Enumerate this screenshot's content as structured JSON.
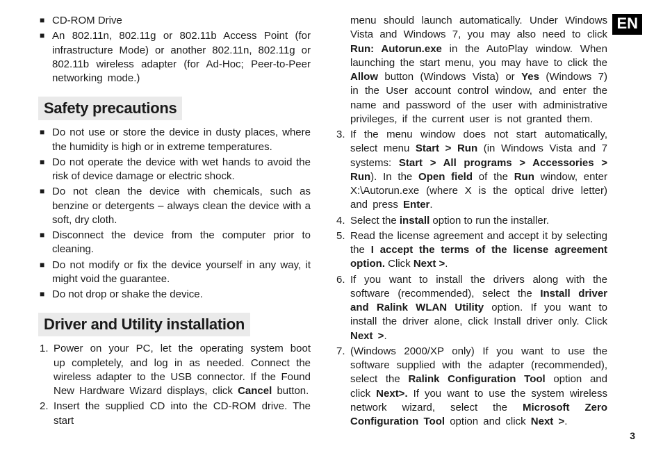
{
  "lang_label": "EN",
  "page_number": "3",
  "left": {
    "top_bullets": [
      "CD-ROM Drive",
      "An 802.11n, 802.11g or 802.11b Access Point (for infrastructure Mode) or another 802.11n, 802.11g or 802.11b wireless adapter (for Ad-Hoc; Peer-to-Peer networking mode.)"
    ],
    "heading_safety": "Safety precautions",
    "safety_bullets": [
      "Do not use or store the device in dusty places, where the humidity is high or in extreme temperatures.",
      "Do not operate the device with wet hands to avoid the risk of device damage or electric shock.",
      "Do not clean the device with chemicals, such as benzine or detergents – always clean the device with a soft, dry cloth.",
      "Disconnect the device from the computer prior to cleaning.",
      "Do not modify or fix the device yourself in any way, it might void the guarantee.",
      "Do not drop or shake the device."
    ],
    "heading_driver": "Driver and Utility installation",
    "step1_pre": "Power on your PC, let the operating system boot up completely, and log in as needed. Connect the wireless adapter to the USB connector. If the Found New Hardware Wizard displays, click ",
    "step1_bold": "Cancel",
    "step1_post": " button.",
    "step2": "Insert the supplied CD into the CD-ROM drive. The start"
  },
  "right": {
    "continuation_1": "menu should launch automatically. Under Windows Vista and Windows 7, you may also need to click ",
    "b_run": "Run: Autorun.exe",
    "continuation_2": " in the AutoPlay window. When launching the start menu, you may have to click the ",
    "b_allow": "Allow",
    "continuation_3": " button (Windows Vista) or ",
    "b_yes": "Yes",
    "continuation_4": " (Windows 7) in the User account control window, and enter the name and password of the user with administrative privileges, if the current user is not granted them.",
    "s3_a": "If the menu window does not start automatically, select menu ",
    "s3_b1": "Start > Run",
    "s3_b": " (in Windows Vista and 7 systems: ",
    "s3_b2": "Start > All programs > Accessories > Run",
    "s3_c": "). In the ",
    "s3_b3": "Open field",
    "s3_d": " of the ",
    "s3_b4": "Run",
    "s3_e": " window, enter X:\\Autorun.exe (where X is the optical drive letter) and press ",
    "s3_b5": "Enter",
    "s3_f": ".",
    "s4_a": "Select the ",
    "s4_b1": "install",
    "s4_b": " option to run the installer.",
    "s5_a": "Read the license agreement and accept it by selecting the ",
    "s5_b1": "I accept the terms of the license agreement option.",
    "s5_b": " Click ",
    "s5_b2": "Next >",
    "s5_c": ".",
    "s6_a": "If you want to install the drivers along with the software (recommended), select the ",
    "s6_b1": "Install driver and Ralink WLAN Utility",
    "s6_b": " option. If you want to install the driver alone, click Install driver only. Click ",
    "s6_b2": "Next >",
    "s6_c": ".",
    "s7_a": "(Windows 2000/XP only) If you want to use the software supplied with the adapter (recommended), select the ",
    "s7_b1": "Ralink Configuration Tool",
    "s7_b": " option and click ",
    "s7_b2": "Next>.",
    "s7_c": " If you want to use the system wireless network wizard, select the ",
    "s7_b3": "Microsoft Zero Configuration Tool",
    "s7_d": " option and click ",
    "s7_b4": "Next >",
    "s7_e": "."
  }
}
